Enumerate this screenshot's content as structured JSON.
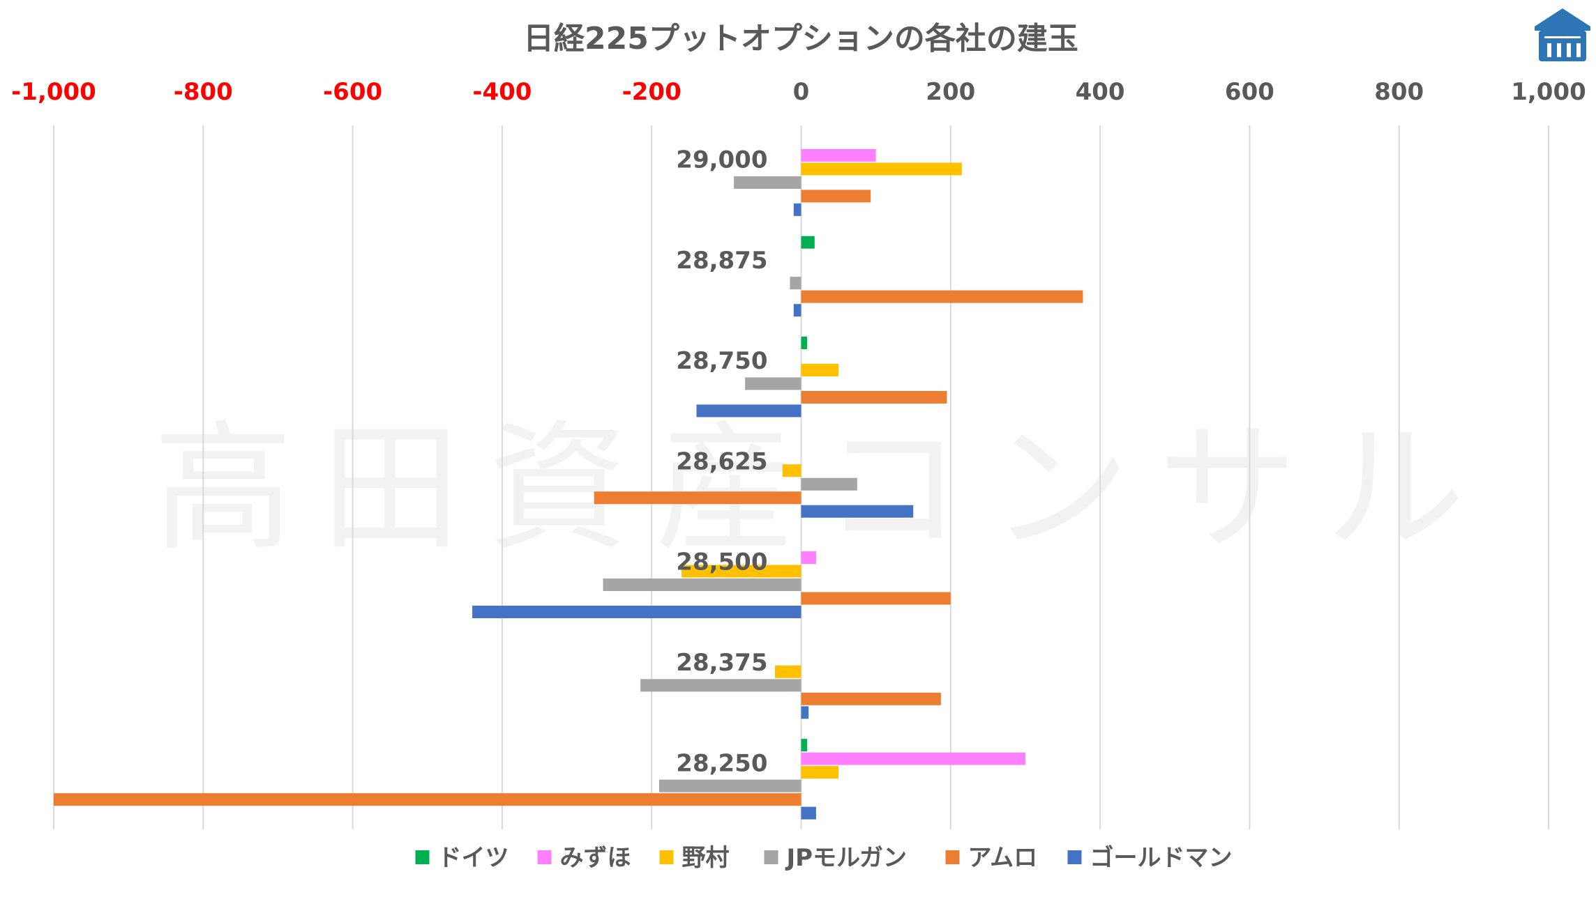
{
  "chart_data": {
    "type": "bar",
    "orientation": "horizontal",
    "title": "日経225プットオプションの各社の建玉",
    "xlabel": "",
    "ylabel": "",
    "xlim": [
      -1000,
      1000
    ],
    "x_ticks": [
      -1000,
      -800,
      -600,
      -400,
      -200,
      0,
      200,
      400,
      600,
      800,
      1000
    ],
    "x_tick_labels": [
      "-1,000",
      "-800",
      "-600",
      "-400",
      "-200",
      "0",
      "200",
      "400",
      "600",
      "800",
      "1,000"
    ],
    "negative_tick_color": "#ff0000",
    "grid": "vertical",
    "legend_position": "bottom",
    "categories": [
      "29,000",
      "28,875",
      "28,750",
      "28,625",
      "28,500",
      "28,375",
      "28,250"
    ],
    "series": [
      {
        "name": "ドイツ",
        "color": "#00b050",
        "values": [
          0,
          18,
          8,
          0,
          0,
          0,
          8
        ]
      },
      {
        "name": "みずほ",
        "color": "#ff80ff",
        "values": [
          100,
          0,
          0,
          0,
          20,
          0,
          300
        ]
      },
      {
        "name": "野村",
        "color": "#ffc000",
        "values": [
          215,
          0,
          50,
          -25,
          -160,
          -35,
          50
        ]
      },
      {
        "name": "JPモルガン",
        "color": "#a5a5a5",
        "values": [
          -90,
          -15,
          -75,
          75,
          -265,
          -215,
          -190
        ]
      },
      {
        "name": "アムロ",
        "color": "#ed7d31",
        "values": [
          93,
          377,
          195,
          -277,
          200,
          187,
          -1000
        ]
      },
      {
        "name": "ゴールドマン",
        "color": "#4472c4",
        "values": [
          -10,
          -10,
          -140,
          150,
          -440,
          10,
          20
        ]
      }
    ]
  },
  "watermark": "高田資産コンサル",
  "logo": {
    "color": "#2e75b6",
    "name": "building-logo-icon"
  }
}
